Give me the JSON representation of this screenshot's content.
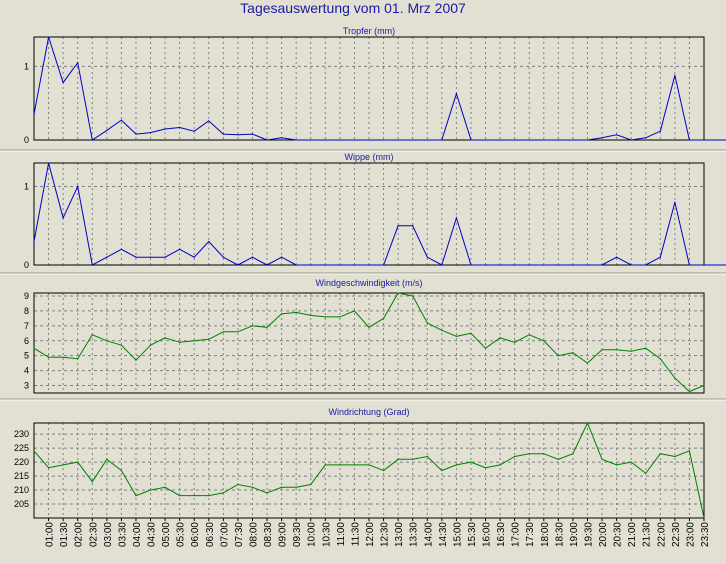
{
  "title": "Tagesauswertung vom 01. Mrz 2007",
  "colors": {
    "background": "#e1e0d2",
    "grid": "#7f7f7f",
    "title": "#1a1aa6",
    "blue": "#0000c8",
    "green": "#008000"
  },
  "chart_data": [
    {
      "type": "line",
      "title": "Tropfer (mm)",
      "color": "#0000c8",
      "ylim": [
        0,
        1.4
      ],
      "yticks": [
        0,
        1
      ],
      "values": [
        0.35,
        1.4,
        0.78,
        1.05,
        0.0,
        0.13,
        0.27,
        0.08,
        0.1,
        0.15,
        0.17,
        0.12,
        0.26,
        0.08,
        0.07,
        0.08,
        0.0,
        0.03,
        0,
        0,
        0,
        0,
        0,
        0,
        0,
        0,
        0,
        0,
        0,
        0.63,
        0,
        0,
        0,
        0,
        0,
        0,
        0,
        0,
        0,
        0.03,
        0.07,
        0.0,
        0.03,
        0.12,
        0.88,
        0,
        0,
        0,
        0,
        0
      ]
    },
    {
      "type": "line",
      "title": "Wippe (mm)",
      "color": "#0000c8",
      "ylim": [
        0,
        1.3
      ],
      "yticks": [
        0,
        1
      ],
      "values": [
        0.3,
        1.3,
        0.6,
        1.0,
        0.0,
        0.1,
        0.2,
        0.1,
        0.1,
        0.1,
        0.2,
        0.1,
        0.3,
        0.1,
        0.0,
        0.1,
        0.0,
        0.1,
        0,
        0,
        0,
        0,
        0,
        0,
        0,
        0.5,
        0.5,
        0.1,
        0.0,
        0.6,
        0,
        0,
        0,
        0,
        0,
        0,
        0,
        0,
        0,
        0.0,
        0.1,
        0.0,
        0.0,
        0.1,
        0.8,
        0,
        0,
        0,
        0,
        0
      ]
    },
    {
      "type": "line",
      "title": "Windgeschwindigkeit (m/s)",
      "color": "#008000",
      "ylim": [
        2.5,
        9.2
      ],
      "yticks": [
        3,
        4,
        5,
        6,
        7,
        8,
        9
      ],
      "values": [
        5.5,
        4.9,
        4.9,
        4.8,
        6.4,
        6.0,
        5.7,
        4.7,
        5.7,
        6.2,
        5.9,
        6.0,
        6.1,
        6.6,
        6.6,
        7.0,
        6.9,
        7.8,
        7.9,
        7.7,
        7.6,
        7.6,
        8.0,
        6.9,
        7.5,
        9.2,
        9.0,
        7.2,
        6.7,
        6.3,
        6.5,
        5.5,
        6.2,
        5.9,
        6.4,
        6.0,
        5.0,
        5.2,
        4.5,
        5.4,
        5.4,
        5.3,
        5.5,
        4.8,
        3.5,
        2.6,
        3.0
      ]
    },
    {
      "type": "line",
      "title": "Windrichtung (Grad)",
      "color": "#008000",
      "ylim": [
        200,
        234
      ],
      "yticks": [
        205,
        210,
        215,
        220,
        225,
        230
      ],
      "values": [
        224,
        218,
        219,
        220,
        213,
        221,
        217,
        208,
        210,
        211,
        208,
        208,
        208,
        209,
        212,
        211,
        209,
        211,
        211,
        212,
        219,
        219,
        219,
        219,
        217,
        221,
        221,
        222,
        217,
        219,
        220,
        218,
        219,
        222,
        223,
        223,
        221,
        223,
        234,
        221,
        219,
        220,
        216,
        223,
        222,
        224,
        200
      ]
    }
  ],
  "x_axis": {
    "labels": [
      "01:00",
      "01:30",
      "02:00",
      "02:30",
      "03:00",
      "03:30",
      "04:00",
      "04:30",
      "05:00",
      "05:30",
      "06:00",
      "06:30",
      "07:00",
      "07:30",
      "08:00",
      "08:30",
      "09:00",
      "09:30",
      "10:00",
      "10:30",
      "11:00",
      "11:30",
      "12:00",
      "12:30",
      "13:00",
      "13:30",
      "14:00",
      "14:30",
      "15:00",
      "15:30",
      "16:00",
      "16:30",
      "17:00",
      "17:30",
      "18:00",
      "18:30",
      "19:00",
      "19:30",
      "20:00",
      "20:30",
      "21:00",
      "21:30",
      "22:00",
      "22:30",
      "23:00",
      "23:30"
    ]
  }
}
